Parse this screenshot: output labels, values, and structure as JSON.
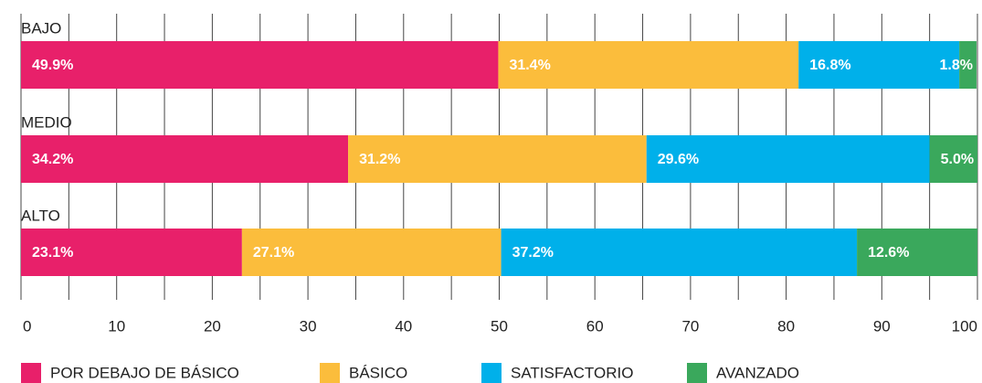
{
  "chart_data": {
    "type": "stacked-barh",
    "categories": [
      "BAJO",
      "MEDIO",
      "ALTO"
    ],
    "series": [
      {
        "name": "POR DEBAJO DE BÁSICO",
        "color": "#e8206a",
        "values": [
          49.9,
          34.2,
          23.1
        ],
        "value_labels": [
          "49.9%",
          "34.2%",
          "23.1%"
        ]
      },
      {
        "name": "BÁSICO",
        "color": "#fbbd3c",
        "values": [
          31.4,
          31.2,
          27.1
        ],
        "value_labels": [
          "31.4%",
          "31.2%",
          "27.1%"
        ]
      },
      {
        "name": "SATISFACTORIO",
        "color": "#00b0ea",
        "values": [
          16.8,
          29.6,
          37.2
        ],
        "value_labels": [
          "16.8%",
          "29.6%",
          "37.2%"
        ]
      },
      {
        "name": "AVANZADO",
        "color": "#3aa85c",
        "values": [
          1.8,
          5.0,
          12.6
        ],
        "value_labels": [
          "1.8%",
          "5.0%",
          "12.6%"
        ]
      }
    ],
    "xlim": [
      0,
      100
    ],
    "xticks": [
      0,
      10,
      20,
      30,
      40,
      50,
      60,
      70,
      80,
      90,
      100
    ],
    "minor_xticks": [
      5,
      15,
      25,
      35,
      45,
      55,
      65,
      75,
      85,
      95
    ],
    "grid": true,
    "legend": "bottom"
  }
}
